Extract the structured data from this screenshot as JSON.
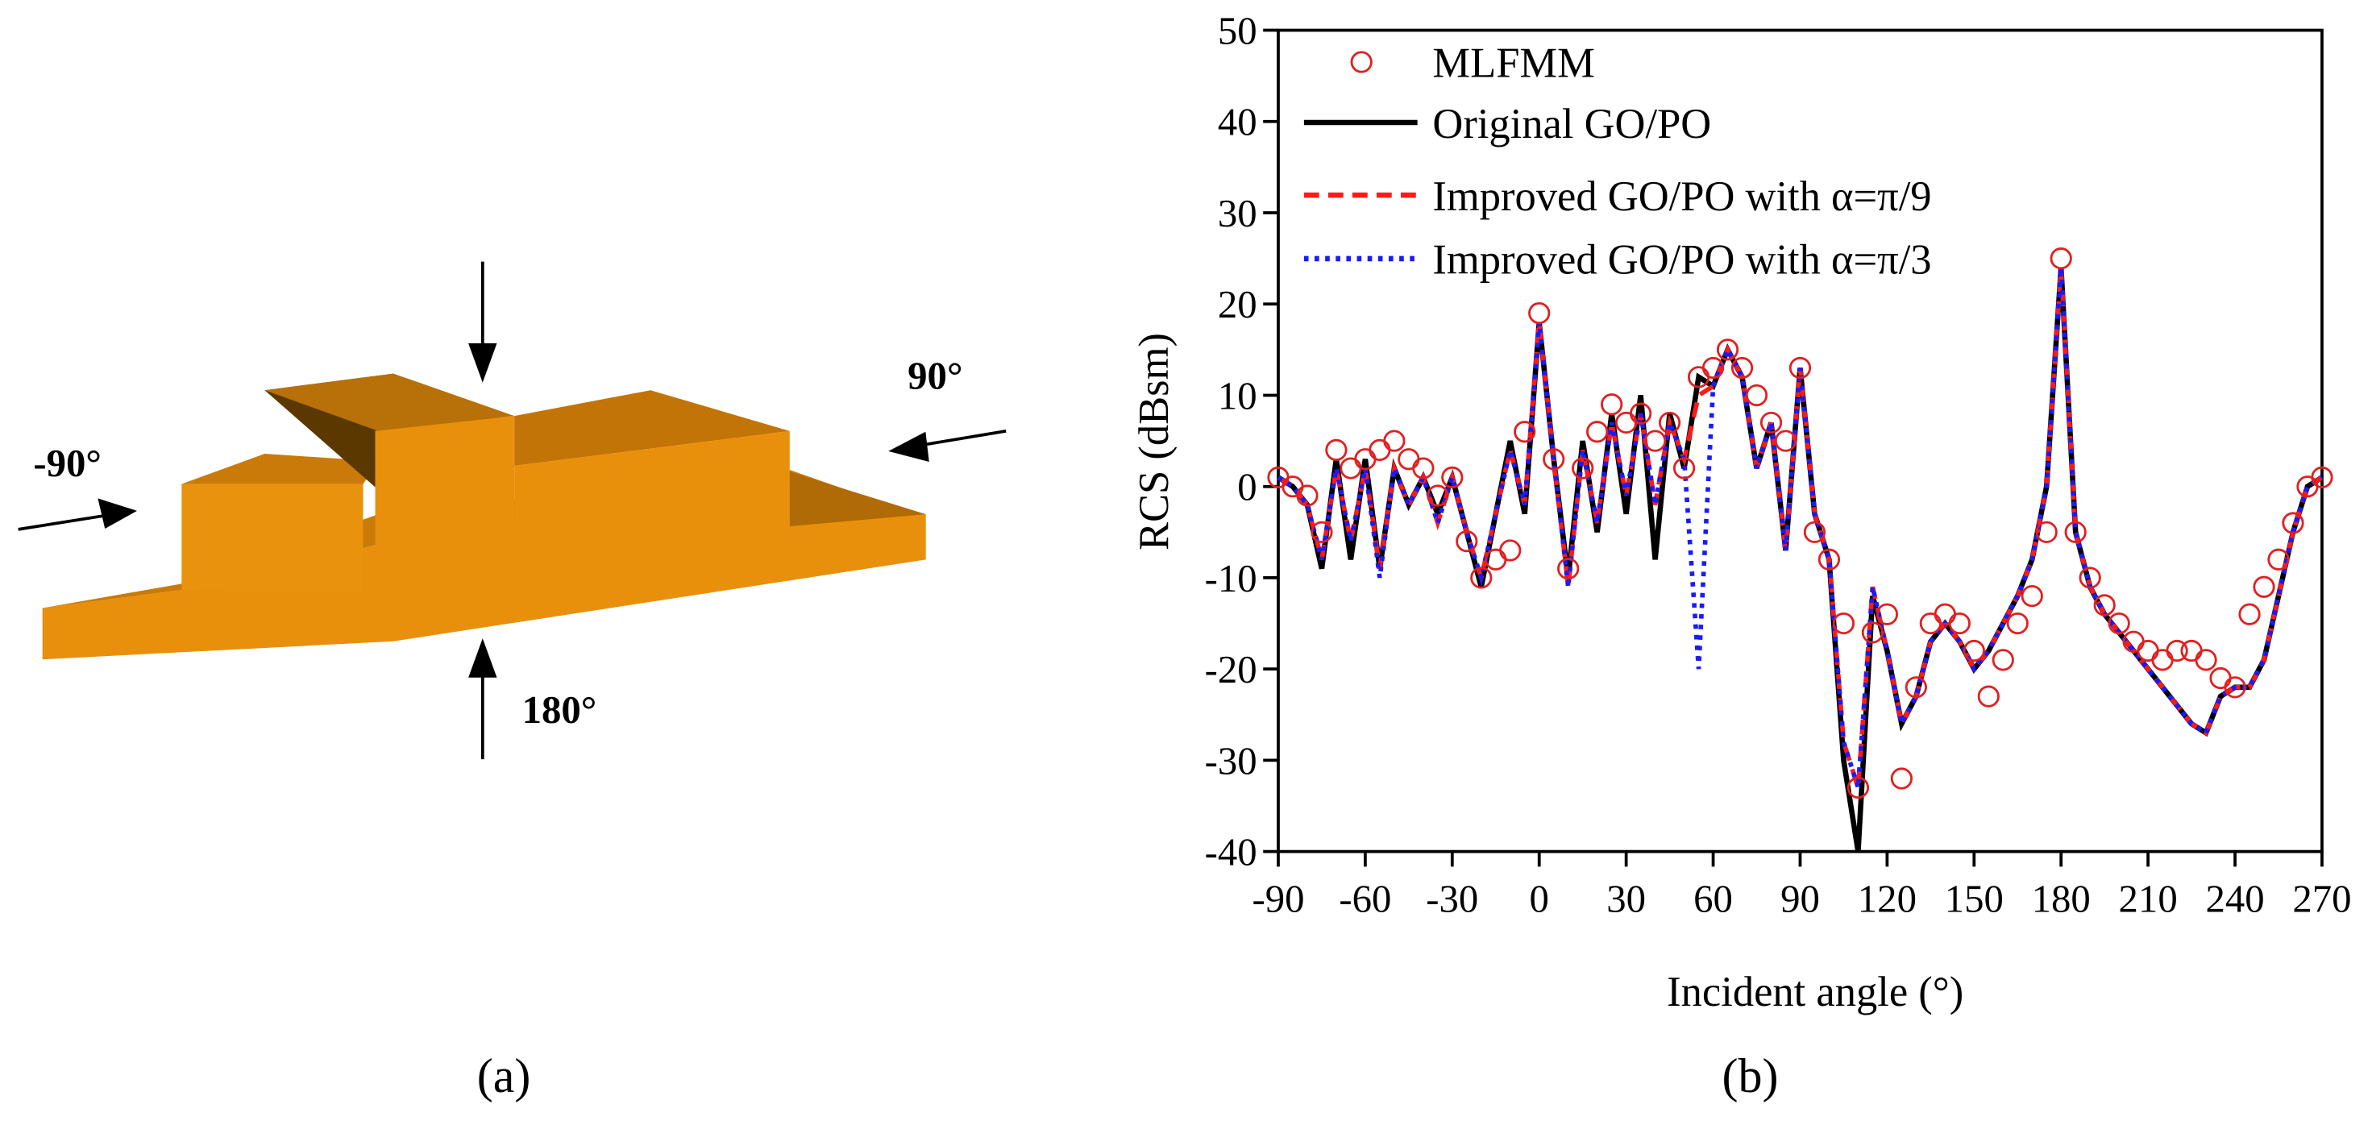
{
  "panel_a": {
    "labels": [
      "-90°",
      "90°",
      "180°"
    ],
    "caption": "(a)"
  },
  "chart_data": {
    "type": "line",
    "caption": "(b)",
    "xlabel": "Incident angle (°)",
    "ylabel": "RCS (dBsm)",
    "xlim": [
      -90,
      270
    ],
    "xticks": [
      -90,
      -60,
      -30,
      0,
      30,
      60,
      90,
      120,
      150,
      180,
      210,
      240,
      270
    ],
    "ylim": [
      -40,
      50
    ],
    "yticks": [
      -40,
      -30,
      -20,
      -10,
      0,
      10,
      20,
      30,
      40,
      50
    ],
    "x": [
      -90,
      -85,
      -80,
      -75,
      -70,
      -65,
      -60,
      -55,
      -50,
      -45,
      -40,
      -35,
      -30,
      -25,
      -20,
      -15,
      -10,
      -5,
      0,
      5,
      10,
      15,
      20,
      25,
      30,
      35,
      40,
      45,
      50,
      55,
      60,
      65,
      70,
      75,
      80,
      85,
      90,
      95,
      100,
      105,
      110,
      115,
      120,
      125,
      130,
      135,
      140,
      145,
      150,
      155,
      160,
      165,
      170,
      175,
      180,
      185,
      190,
      195,
      200,
      205,
      210,
      215,
      220,
      225,
      230,
      235,
      240,
      245,
      250,
      255,
      260,
      265,
      270
    ],
    "series": [
      {
        "name": "MLFMM",
        "color": "#e02020",
        "style": "marker",
        "values": [
          1,
          0,
          -1,
          -5,
          4,
          2,
          3,
          4,
          5,
          3,
          2,
          -1,
          1,
          -6,
          -10,
          -8,
          -7,
          6,
          19,
          3,
          -9,
          2,
          6,
          9,
          7,
          8,
          5,
          7,
          2,
          12,
          13,
          15,
          13,
          10,
          7,
          5,
          13,
          -5,
          -8,
          -15,
          -33,
          -16,
          -14,
          -32,
          -22,
          -15,
          -14,
          -15,
          -18,
          -23,
          -19,
          -15,
          -12,
          -5,
          25,
          -5,
          -10,
          -13,
          -15,
          -17,
          -18,
          -19,
          -18,
          -18,
          -19,
          -21,
          -22,
          -14,
          -11,
          -8,
          -4,
          0,
          1
        ]
      },
      {
        "name": "Original GO/PO",
        "color": "#000000",
        "style": "solid",
        "values": [
          1,
          0,
          -2,
          -9,
          3,
          -8,
          3,
          -9,
          2,
          -2,
          1,
          -3,
          1,
          -5,
          -11,
          -3,
          5,
          -3,
          18,
          3,
          -10,
          5,
          -5,
          8,
          -3,
          10,
          -8,
          8,
          2,
          12,
          11,
          15,
          12,
          2,
          7,
          -7,
          13,
          -3,
          -8,
          -30,
          -40,
          -12,
          -18,
          -26,
          -23,
          -17,
          -15,
          -17,
          -20,
          -18,
          -15,
          -12,
          -8,
          0,
          24,
          -5,
          -11,
          -14,
          -16,
          -18,
          -20,
          -22,
          -24,
          -26,
          -27,
          -23,
          -22,
          -22,
          -19,
          -12,
          -5,
          0,
          1
        ]
      },
      {
        "name": "Improved GO/PO with α=π/9",
        "color": "#ff1a1a",
        "style": "dashed",
        "values": [
          1,
          0,
          -2,
          -8,
          2,
          -6,
          2,
          -9,
          2,
          -2,
          1,
          -4,
          1,
          -5,
          -10,
          -3,
          4,
          -2,
          18,
          3,
          -11,
          4,
          -4,
          7,
          -1,
          8,
          -2,
          7,
          3,
          10,
          11,
          15,
          12,
          2,
          7,
          -7,
          13,
          -3,
          -8,
          -28,
          -33,
          -11,
          -18,
          -26,
          -23,
          -17,
          -15,
          -17,
          -20,
          -18,
          -15,
          -12,
          -8,
          0,
          24,
          -5,
          -11,
          -14,
          -16,
          -18,
          -20,
          -22,
          -24,
          -26,
          -27,
          -23,
          -22,
          -22,
          -19,
          -12,
          -5,
          0,
          1
        ]
      },
      {
        "name": "Improved GO/PO with α=π/3",
        "color": "#1a1aff",
        "style": "dotted",
        "values": [
          1,
          0,
          -2,
          -8,
          2,
          -6,
          2,
          -10,
          2,
          -2,
          1,
          -4,
          1,
          -5,
          -10,
          -3,
          4,
          -2,
          18,
          3,
          -11,
          4,
          -4,
          7,
          -1,
          8,
          -2,
          7,
          3,
          -20,
          11,
          15,
          12,
          2,
          7,
          -7,
          13,
          -3,
          -8,
          -28,
          -33,
          -11,
          -18,
          -26,
          -23,
          -17,
          -15,
          -17,
          -20,
          -18,
          -15,
          -12,
          -8,
          0,
          24,
          -5,
          -11,
          -14,
          -16,
          -18,
          -20,
          -22,
          -24,
          -26,
          -27,
          -23,
          -22,
          -22,
          -19,
          -12,
          -5,
          0,
          1
        ]
      }
    ]
  }
}
